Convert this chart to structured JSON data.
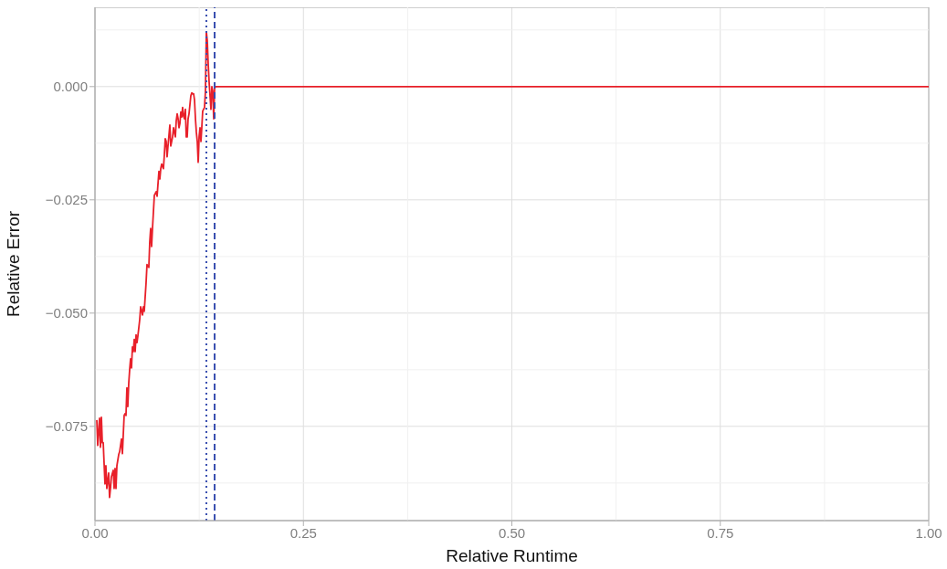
{
  "chart_data": {
    "type": "line",
    "xlabel": "Relative Runtime",
    "ylabel": "Relative Error",
    "xlim": [
      0,
      1
    ],
    "ylim": [
      -0.0958,
      0.0175
    ],
    "xticks": [
      {
        "value": 0,
        "label": "0.00"
      },
      {
        "value": 0.25,
        "label": "0.25"
      },
      {
        "value": 0.5,
        "label": "0.50"
      },
      {
        "value": 0.75,
        "label": "0.75"
      },
      {
        "value": 1,
        "label": "1.00"
      }
    ],
    "yticks": [
      {
        "value": -0.075,
        "label": "−0.075"
      },
      {
        "value": -0.05,
        "label": "−0.050"
      },
      {
        "value": -0.025,
        "label": "−0.025"
      },
      {
        "value": 0,
        "label": "0.000"
      }
    ],
    "grid": true,
    "line_style": "solid",
    "marker": "none",
    "series": [
      {
        "color": "#e8202a",
        "x": [
          0.0022,
          0.0033,
          0.0055,
          0.0066,
          0.0077,
          0.0088,
          0.0099,
          0.012,
          0.0131,
          0.0142,
          0.0164,
          0.0175,
          0.0186,
          0.0197,
          0.0219,
          0.023,
          0.0241,
          0.0252,
          0.0263,
          0.0285,
          0.0296,
          0.0318,
          0.0329,
          0.035,
          0.0361,
          0.0372,
          0.0383,
          0.0394,
          0.0405,
          0.0416,
          0.0427,
          0.0438,
          0.0449,
          0.046,
          0.0471,
          0.0482,
          0.0493,
          0.0504,
          0.0515,
          0.0537,
          0.0548,
          0.0559,
          0.057,
          0.0581,
          0.0591,
          0.0613,
          0.0624,
          0.0646,
          0.0657,
          0.0668,
          0.0679,
          0.069,
          0.0712,
          0.0734,
          0.0745,
          0.0767,
          0.0778,
          0.0789,
          0.08,
          0.0821,
          0.0832,
          0.0843,
          0.0854,
          0.0865,
          0.0876,
          0.0898,
          0.0909,
          0.0931,
          0.0942,
          0.0953,
          0.0964,
          0.0975,
          0.0986,
          0.0997,
          0.1008,
          0.1019,
          0.103,
          0.1041,
          0.1051,
          0.1062,
          0.1073,
          0.1084,
          0.1095,
          0.1106,
          0.1117,
          0.1128,
          0.115,
          0.1161,
          0.1172,
          0.1183,
          0.1194,
          0.1205,
          0.1216,
          0.1227,
          0.1238,
          0.1249,
          0.126,
          0.1271,
          0.1281,
          0.1292,
          0.1303,
          0.1314,
          0.1325,
          0.1336,
          0.1347,
          0.1358,
          0.1369,
          0.138,
          0.1391,
          0.1402,
          0.1413,
          0.1424,
          0.1435,
          0.1446,
          1
        ],
        "values": [
          -0.0736,
          -0.0792,
          -0.0732,
          -0.0796,
          -0.073,
          -0.0786,
          -0.0786,
          -0.0877,
          -0.0837,
          -0.0887,
          -0.0853,
          -0.0907,
          -0.0887,
          -0.0861,
          -0.0847,
          -0.0887,
          -0.0843,
          -0.0887,
          -0.0837,
          -0.0812,
          -0.0806,
          -0.0778,
          -0.081,
          -0.0726,
          -0.0722,
          -0.0726,
          -0.0665,
          -0.0706,
          -0.0655,
          -0.0625,
          -0.0601,
          -0.0621,
          -0.0575,
          -0.0585,
          -0.0558,
          -0.0585,
          -0.0548,
          -0.0565,
          -0.055,
          -0.0514,
          -0.0486,
          -0.0494,
          -0.0504,
          -0.0486,
          -0.0496,
          -0.0433,
          -0.0393,
          -0.0399,
          -0.0343,
          -0.0313,
          -0.0353,
          -0.0313,
          -0.024,
          -0.0232,
          -0.0242,
          -0.0187,
          -0.0204,
          -0.0181,
          -0.0171,
          -0.0181,
          -0.0151,
          -0.0115,
          -0.0121,
          -0.0155,
          -0.0131,
          -0.0085,
          -0.0131,
          -0.0111,
          -0.0091,
          -0.0101,
          -0.0111,
          -0.0075,
          -0.006,
          -0.0071,
          -0.0091,
          -0.0081,
          -0.0056,
          -0.0067,
          -0.0046,
          -0.0065,
          -0.0071,
          -0.005,
          -0.0111,
          -0.0111,
          -0.0071,
          -0.006,
          -0.002,
          -0.0014,
          -0.0016,
          -0.0016,
          -0.003,
          -0.0071,
          -0.0101,
          -0.0121,
          -0.0167,
          -0.0111,
          -0.0091,
          -0.0121,
          -0.0091,
          -0.0054,
          -0.005,
          -0.0046,
          -0.001,
          0.0121,
          0.0101,
          0.005,
          0.001,
          -0.002,
          -0.005,
          0,
          -0.001,
          -0.0071,
          -0.0004,
          0,
          0
        ]
      }
    ],
    "ref_lines": [
      {
        "axis": "x",
        "value": 0.1336,
        "color": "#3a4fb0",
        "line_style": "dotted"
      },
      {
        "axis": "x",
        "value": 0.1435,
        "color": "#3a4fb0",
        "line_style": "dashed"
      }
    ]
  }
}
